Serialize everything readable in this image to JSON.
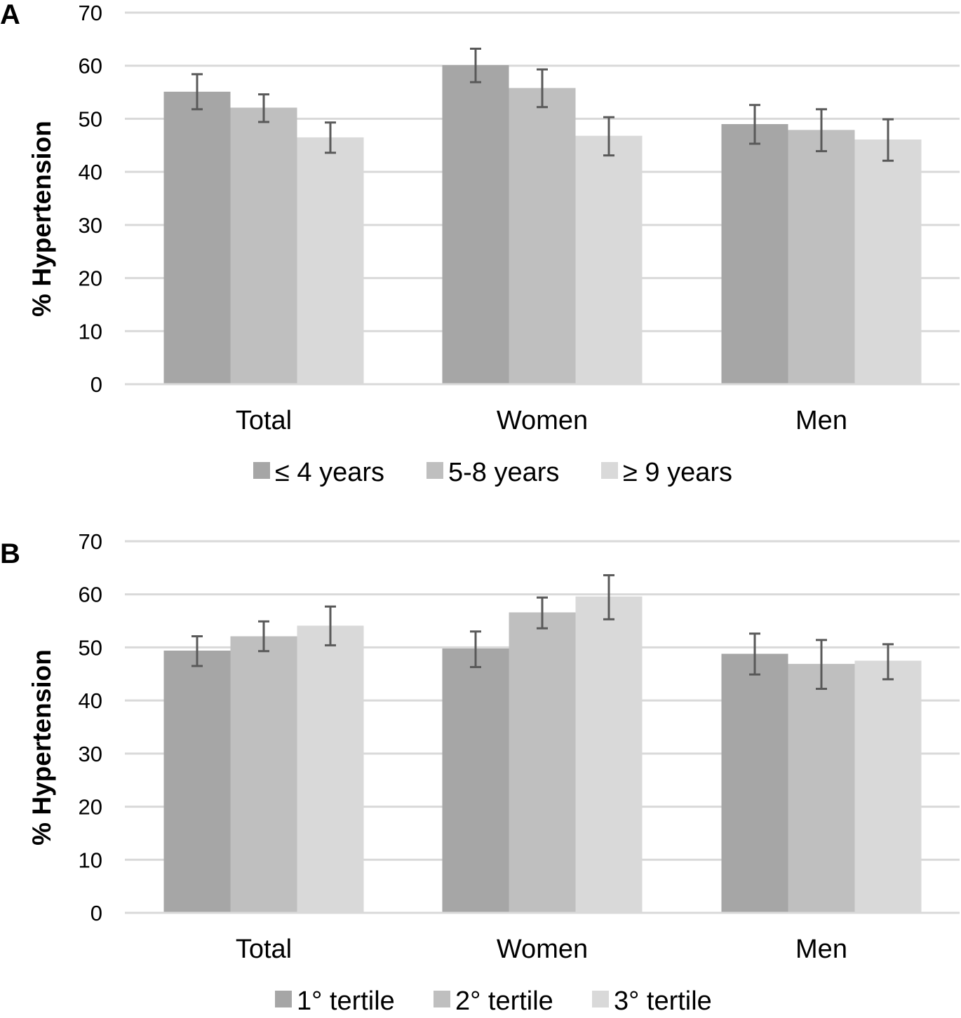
{
  "chart_data": [
    {
      "type": "bar",
      "panel_label": "A",
      "categories": [
        "Total",
        "Women",
        "Men"
      ],
      "ylabel": "% Hypertension",
      "ylim": [
        0,
        70
      ],
      "yticks": [
        0,
        10,
        20,
        30,
        40,
        50,
        60,
        70
      ],
      "grid": true,
      "legend_position": "bottom",
      "series": [
        {
          "name": "≤ 4 years",
          "color": "#a6a6a6",
          "values": [
            55.1,
            60.1,
            49.0
          ],
          "error_low": [
            51.8,
            56.9,
            45.3
          ],
          "error_high": [
            58.4,
            63.2,
            52.6
          ]
        },
        {
          "name": "5-8 years",
          "color": "#bfbfbf",
          "values": [
            52.1,
            55.8,
            47.9
          ],
          "error_low": [
            49.4,
            52.2,
            43.9
          ],
          "error_high": [
            54.6,
            59.3,
            51.8
          ]
        },
        {
          "name": "≥ 9 years",
          "color": "#d9d9d9",
          "values": [
            46.5,
            46.8,
            46.1
          ],
          "error_low": [
            43.6,
            43.1,
            42.1
          ],
          "error_high": [
            49.3,
            50.3,
            49.9
          ]
        }
      ]
    },
    {
      "type": "bar",
      "panel_label": "B",
      "categories": [
        "Total",
        "Women",
        "Men"
      ],
      "ylabel": "% Hypertension",
      "ylim": [
        0,
        70
      ],
      "yticks": [
        0,
        10,
        20,
        30,
        40,
        50,
        60,
        70
      ],
      "grid": true,
      "legend_position": "bottom",
      "series": [
        {
          "name": "1° tertile",
          "color": "#a6a6a6",
          "values": [
            49.4,
            49.8,
            48.8
          ],
          "error_low": [
            46.5,
            46.3,
            44.9
          ],
          "error_high": [
            52.1,
            53.0,
            52.6
          ]
        },
        {
          "name": "2° tertile",
          "color": "#bfbfbf",
          "values": [
            52.1,
            56.6,
            46.9
          ],
          "error_low": [
            49.3,
            53.6,
            42.2
          ],
          "error_high": [
            54.9,
            59.4,
            51.4
          ]
        },
        {
          "name": "3° tertile",
          "color": "#d9d9d9",
          "values": [
            54.1,
            59.6,
            47.5
          ],
          "error_low": [
            50.4,
            55.3,
            44.0
          ],
          "error_high": [
            57.7,
            63.6,
            50.6
          ]
        }
      ]
    }
  ]
}
